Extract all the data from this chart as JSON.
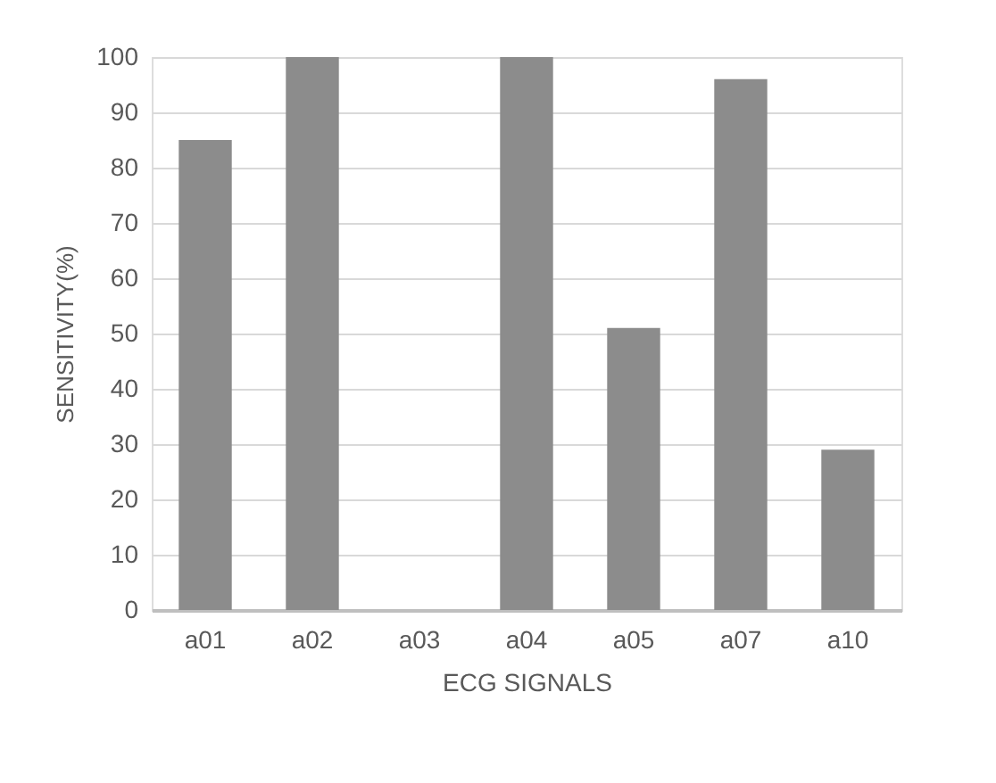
{
  "chart_data": {
    "type": "bar",
    "xlabel": "ECG SIGNALS",
    "ylabel": "SENSITIVITY(%)",
    "categories": [
      "a01",
      "a02",
      "a03",
      "a04",
      "a05",
      "a07",
      "a10"
    ],
    "values": [
      85,
      100,
      0,
      100,
      51,
      96,
      29
    ],
    "color": "#8c8c8c",
    "ylim": [
      0,
      100
    ],
    "yticks": [
      0,
      10,
      20,
      30,
      40,
      50,
      60,
      70,
      80,
      90,
      100
    ],
    "grid": "y"
  }
}
